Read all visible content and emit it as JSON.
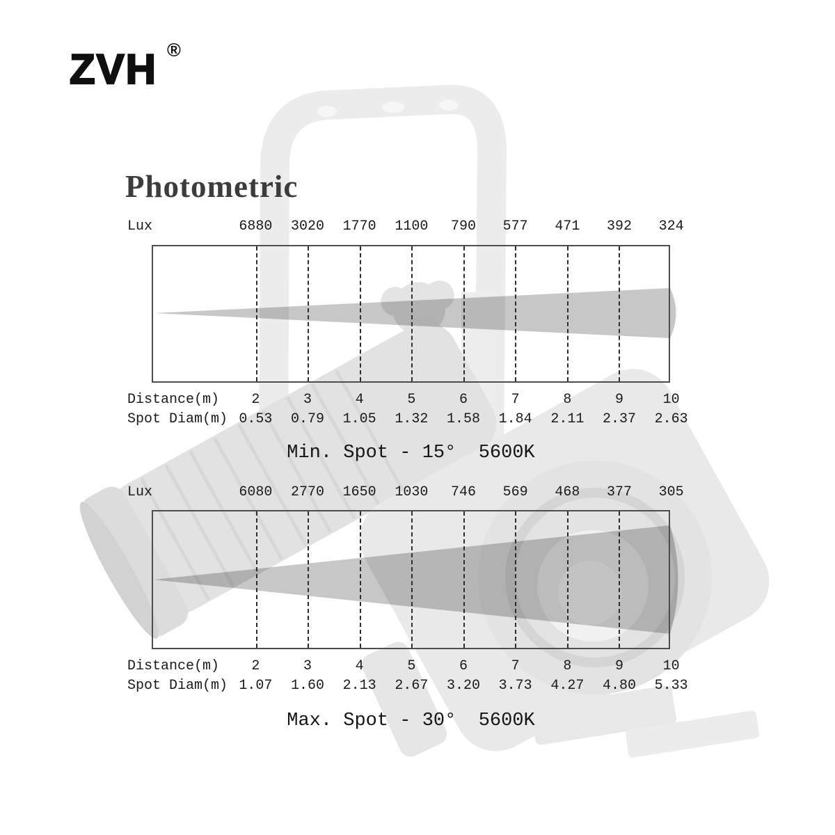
{
  "brand": {
    "logo_text": "ZVH",
    "registered_mark": "®"
  },
  "page_title": "Photometric",
  "charts": [
    {
      "id": "min-spot",
      "lux_label": "Lux",
      "lux_values": [
        "6880",
        "3020",
        "1770",
        "1100",
        "790",
        "577",
        "471",
        "392",
        "324"
      ],
      "distance_label": "Distance(m)",
      "distance_values": [
        "2",
        "3",
        "4",
        "5",
        "6",
        "7",
        "8",
        "9",
        "10"
      ],
      "spot_label": "Spot Diam(m)",
      "spot_values": [
        "0.53",
        "0.79",
        "1.05",
        "1.32",
        "1.58",
        "1.84",
        "2.11",
        "2.37",
        "2.63"
      ],
      "caption": "Min. Spot - 15°  5600K"
    },
    {
      "id": "max-spot",
      "lux_label": "Lux",
      "lux_values": [
        "6080",
        "2770",
        "1650",
        "1030",
        "746",
        "569",
        "468",
        "377",
        "305"
      ],
      "distance_label": "Distance(m)",
      "distance_values": [
        "2",
        "3",
        "4",
        "5",
        "6",
        "7",
        "8",
        "9",
        "10"
      ],
      "spot_label": "Spot Diam(m)",
      "spot_values": [
        "1.07",
        "1.60",
        "2.13",
        "2.67",
        "3.20",
        "3.73",
        "4.27",
        "4.80",
        "5.33"
      ],
      "caption": "Max. Spot - 30°  5600K"
    }
  ],
  "colors": {
    "beam_cone": "#c7c7c7",
    "dashed_grid": "#2d2d2d",
    "box_border": "#4d4d4d",
    "text": "#1a1a1a",
    "title": "#3c3c3c",
    "watermark": "#e8e8e8"
  },
  "chart_data": [
    {
      "type": "area",
      "title": "Min. Spot - 15° 5600K",
      "beam_angle_deg": 15,
      "color_temperature": "5600K",
      "xlabel": "Distance(m)",
      "x": [
        2,
        3,
        4,
        5,
        6,
        7,
        8,
        9,
        10
      ],
      "series": [
        {
          "name": "Lux",
          "values": [
            6880,
            3020,
            1770,
            1100,
            790,
            577,
            471,
            392,
            324
          ]
        },
        {
          "name": "Spot Diam(m)",
          "values": [
            0.53,
            0.79,
            1.05,
            1.32,
            1.58,
            1.84,
            2.11,
            2.37,
            2.63
          ]
        }
      ],
      "grid": "dashed-vertical",
      "legend": "none"
    },
    {
      "type": "area",
      "title": "Max. Spot - 30° 5600K",
      "beam_angle_deg": 30,
      "color_temperature": "5600K",
      "xlabel": "Distance(m)",
      "x": [
        2,
        3,
        4,
        5,
        6,
        7,
        8,
        9,
        10
      ],
      "series": [
        {
          "name": "Lux",
          "values": [
            6080,
            2770,
            1650,
            1030,
            746,
            569,
            468,
            377,
            305
          ]
        },
        {
          "name": "Spot Diam(m)",
          "values": [
            1.07,
            1.6,
            2.13,
            2.67,
            3.2,
            3.73,
            4.27,
            4.8,
            5.33
          ]
        }
      ],
      "grid": "dashed-vertical",
      "legend": "none"
    }
  ]
}
